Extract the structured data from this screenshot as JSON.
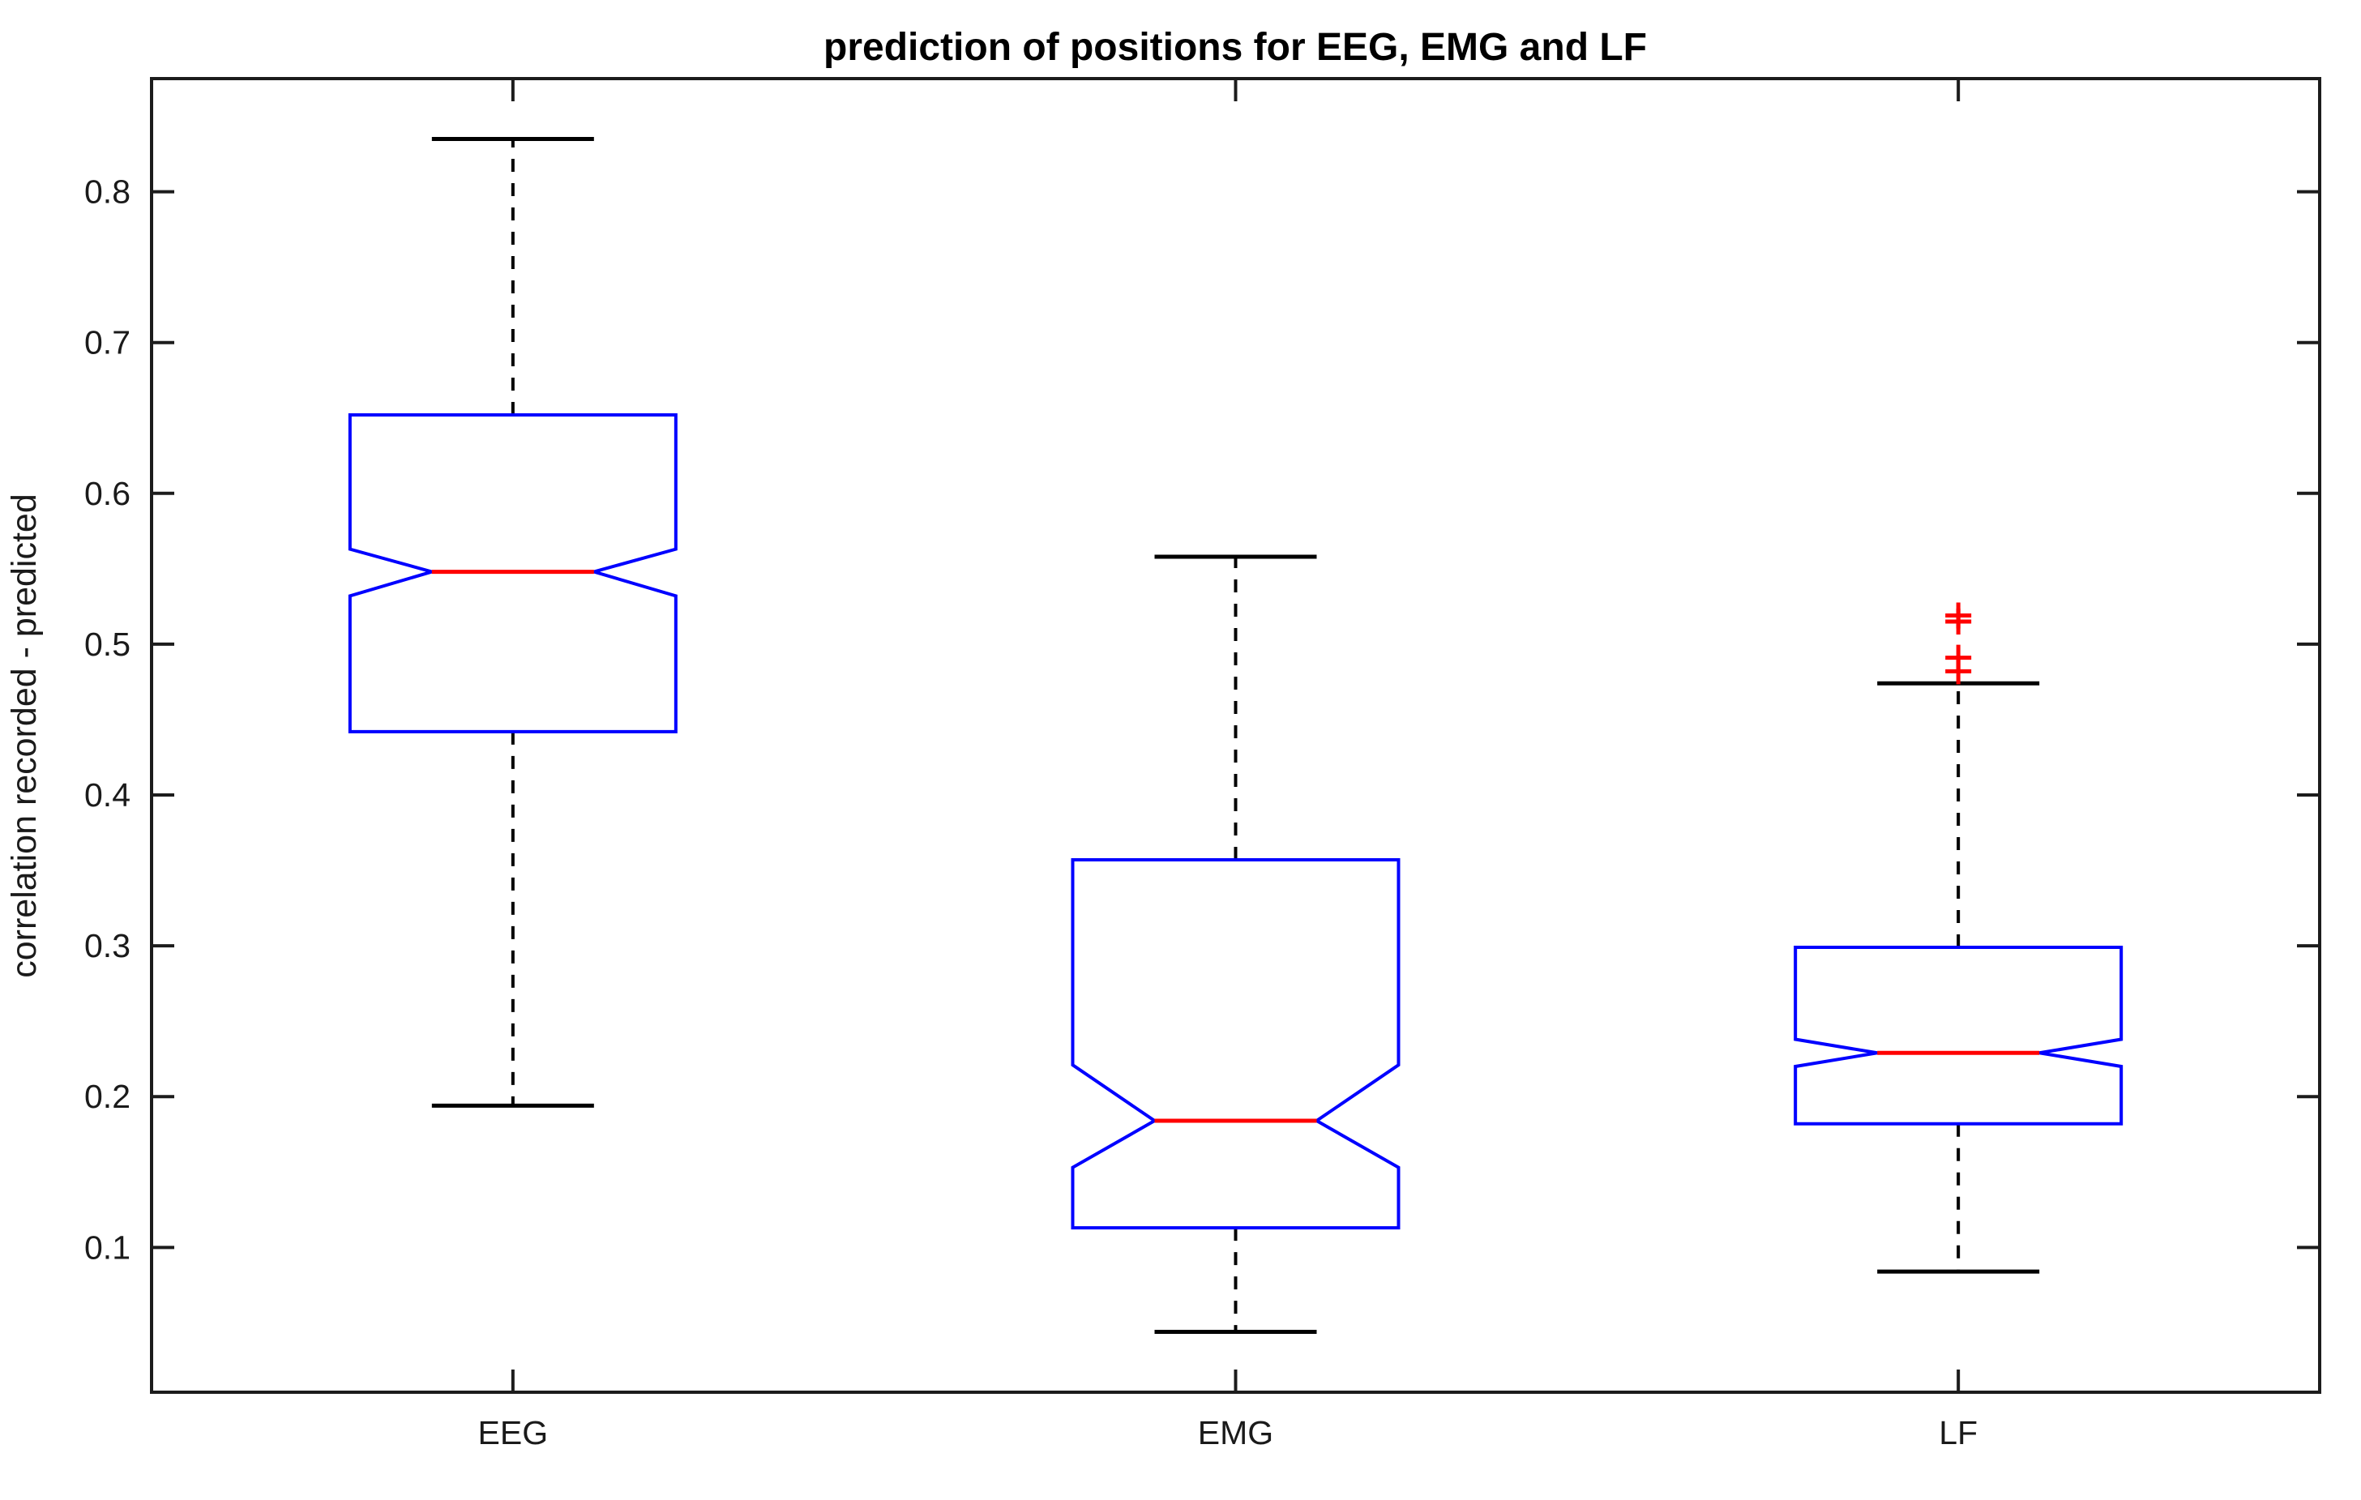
{
  "chart_data": {
    "type": "boxplot",
    "notched": true,
    "title": "prediction of positions for EEG, EMG and LF",
    "xlabel": "",
    "ylabel": "correlation recorded - predicted",
    "categories": [
      "EEG",
      "EMG",
      "LF"
    ],
    "ylim": [
      0.004,
      0.875
    ],
    "yticks": [
      0.1,
      0.2,
      0.3,
      0.4,
      0.5,
      0.6,
      0.7,
      0.8
    ],
    "ytick_labels": [
      "0.1",
      "0.2",
      "0.3",
      "0.4",
      "0.5",
      "0.6",
      "0.7",
      "0.8"
    ],
    "grid": false,
    "legend": null,
    "series": [
      {
        "name": "EEG",
        "whisker_low": 0.194,
        "q1": 0.442,
        "notch_low": 0.532,
        "median": 0.548,
        "notch_high": 0.563,
        "q3": 0.652,
        "whisker_high": 0.835,
        "outliers": []
      },
      {
        "name": "EMG",
        "whisker_low": 0.044,
        "q1": 0.113,
        "notch_low": 0.153,
        "median": 0.184,
        "notch_high": 0.221,
        "q3": 0.357,
        "whisker_high": 0.558,
        "outliers": []
      },
      {
        "name": "LF",
        "whisker_low": 0.084,
        "q1": 0.182,
        "notch_low": 0.22,
        "median": 0.229,
        "notch_high": 0.238,
        "q3": 0.299,
        "whisker_high": 0.474,
        "outliers": [
          0.519,
          0.515,
          0.491,
          0.482
        ]
      }
    ],
    "colors": {
      "background": "#ffffff",
      "box": "#0000ff",
      "median": "#ff0000",
      "outlier": "#ff0000",
      "whisker": "#000000",
      "axis": "#1c1c1c",
      "text": "#1a1a1a"
    }
  }
}
